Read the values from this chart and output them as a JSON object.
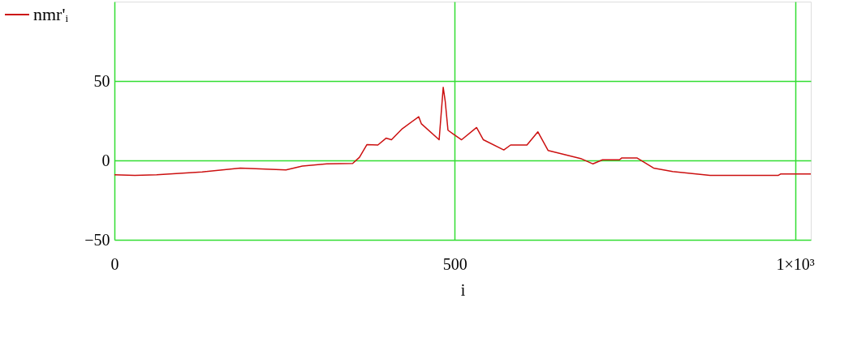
{
  "chart_data": {
    "type": "line",
    "xlabel": "i",
    "legend": "left",
    "grid": true,
    "line_style": "solid",
    "marker": "none",
    "xlim": [
      0,
      1023
    ],
    "ylim": [
      -50,
      100
    ],
    "xticks": [
      0,
      500,
      {
        "value": 1000,
        "label": "1×10³"
      }
    ],
    "yticks": [
      -50,
      0,
      50
    ],
    "series": [
      {
        "name": "nmr'ᵢ",
        "color": "#cc1010",
        "x": [
          0,
          30,
          62,
          129,
          185,
          252,
          276,
          312,
          350,
          360,
          371,
          387,
          399,
          407,
          423,
          447,
          451,
          477,
          483,
          486,
          490,
          498,
          510,
          532,
          542,
          572,
          582,
          606,
          622,
          637,
          661,
          685,
          703,
          717,
          742,
          745,
          768,
          792,
          820,
          875,
          975,
          979,
          1023
        ],
        "values": [
          -9,
          -9.5,
          -9,
          -7.3,
          -4.8,
          -6,
          -3.6,
          -2.2,
          -1.9,
          2,
          10,
          9.7,
          14,
          13,
          20,
          27.5,
          23,
          13,
          46,
          37,
          19,
          16.5,
          13,
          20.7,
          13,
          6.6,
          9.7,
          9.7,
          18,
          6.3,
          3.7,
          1.2,
          -2.2,
          0.4,
          0.4,
          1.5,
          1.5,
          -4.8,
          -7,
          -9.5,
          -9.5,
          -8.5,
          -8.5
        ]
      }
    ]
  }
}
